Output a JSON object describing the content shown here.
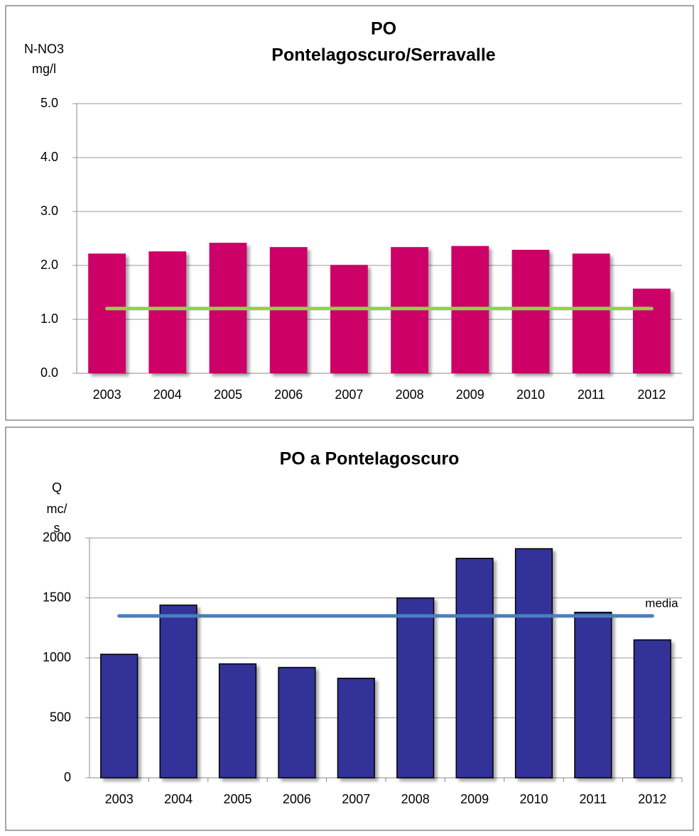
{
  "chart_data": [
    {
      "type": "bar",
      "title": [
        "PO",
        "Pontelagoscuro/Serravalle"
      ],
      "y_label": [
        "N-NO3",
        "mg/l"
      ],
      "categories": [
        "2003",
        "2004",
        "2005",
        "2006",
        "2007",
        "2008",
        "2009",
        "2010",
        "2011",
        "2012"
      ],
      "values": [
        2.22,
        2.26,
        2.42,
        2.34,
        2.01,
        2.34,
        2.36,
        2.29,
        2.22,
        1.57
      ],
      "color": "#cc0066",
      "bar_stroke": null,
      "reference_line": {
        "value": 1.2,
        "color": "#92d050"
      },
      "ylim": [
        0,
        5
      ],
      "yticks": [
        {
          "value": 0,
          "label": "0.0"
        },
        {
          "value": 1,
          "label": "1.0"
        },
        {
          "value": 2,
          "label": "2.0"
        },
        {
          "value": 3,
          "label": "3.0"
        },
        {
          "value": 4,
          "label": "4.0"
        },
        {
          "value": 5,
          "label": "5.0"
        }
      ],
      "grid": true
    },
    {
      "type": "bar",
      "title": [
        "PO a Pontelagoscuro"
      ],
      "y_label": [
        "Q",
        "mc/",
        "s"
      ],
      "categories": [
        "2003",
        "2004",
        "2005",
        "2006",
        "2007",
        "2008",
        "2009",
        "2010",
        "2011",
        "2012"
      ],
      "values": [
        1030,
        1440,
        950,
        920,
        830,
        1500,
        1830,
        1910,
        1380,
        1150
      ],
      "color": "#333399",
      "bar_stroke": "#000000",
      "reference_line": {
        "value": 1350,
        "color": "#4a7ebb",
        "label": "media"
      },
      "ylim": [
        0,
        2000
      ],
      "yticks": [
        0,
        500,
        1000,
        1500,
        2000
      ],
      "grid": true
    }
  ]
}
